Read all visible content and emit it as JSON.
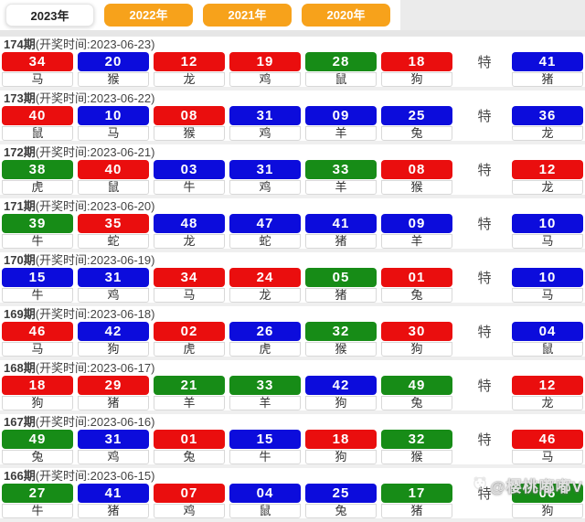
{
  "tabs": [
    {
      "label": "2023年",
      "active": true
    },
    {
      "label": "2022年",
      "active": false
    },
    {
      "label": "2021年",
      "active": false
    },
    {
      "label": "2020年",
      "active": false
    }
  ],
  "special_label": "特",
  "watermark": {
    "text": "@樱桃嘟嘟V",
    "icon": "panda-icon"
  },
  "colors": {
    "red": "#ea0e0e",
    "blue": "#0c0cdc",
    "green": "#178c17",
    "tab_orange": "#f7a21b"
  },
  "draws": [
    {
      "period": "174期",
      "time": "(开奖时间:2023-06-23)",
      "balls": [
        {
          "n": "34",
          "z": "马",
          "c": "red"
        },
        {
          "n": "20",
          "z": "猴",
          "c": "blue"
        },
        {
          "n": "12",
          "z": "龙",
          "c": "red"
        },
        {
          "n": "19",
          "z": "鸡",
          "c": "red"
        },
        {
          "n": "28",
          "z": "鼠",
          "c": "green"
        },
        {
          "n": "18",
          "z": "狗",
          "c": "red"
        }
      ],
      "special": {
        "n": "41",
        "z": "猪",
        "c": "blue"
      }
    },
    {
      "period": "173期",
      "time": "(开奖时间:2023-06-22)",
      "balls": [
        {
          "n": "40",
          "z": "鼠",
          "c": "red"
        },
        {
          "n": "10",
          "z": "马",
          "c": "blue"
        },
        {
          "n": "08",
          "z": "猴",
          "c": "red"
        },
        {
          "n": "31",
          "z": "鸡",
          "c": "blue"
        },
        {
          "n": "09",
          "z": "羊",
          "c": "blue"
        },
        {
          "n": "25",
          "z": "兔",
          "c": "blue"
        }
      ],
      "special": {
        "n": "36",
        "z": "龙",
        "c": "blue"
      }
    },
    {
      "period": "172期",
      "time": "(开奖时间:2023-06-21)",
      "balls": [
        {
          "n": "38",
          "z": "虎",
          "c": "green"
        },
        {
          "n": "40",
          "z": "鼠",
          "c": "red"
        },
        {
          "n": "03",
          "z": "牛",
          "c": "blue"
        },
        {
          "n": "31",
          "z": "鸡",
          "c": "blue"
        },
        {
          "n": "33",
          "z": "羊",
          "c": "green"
        },
        {
          "n": "08",
          "z": "猴",
          "c": "red"
        }
      ],
      "special": {
        "n": "12",
        "z": "龙",
        "c": "red"
      }
    },
    {
      "period": "171期",
      "time": "(开奖时间:2023-06-20)",
      "balls": [
        {
          "n": "39",
          "z": "牛",
          "c": "green"
        },
        {
          "n": "35",
          "z": "蛇",
          "c": "red"
        },
        {
          "n": "48",
          "z": "龙",
          "c": "blue"
        },
        {
          "n": "47",
          "z": "蛇",
          "c": "blue"
        },
        {
          "n": "41",
          "z": "猪",
          "c": "blue"
        },
        {
          "n": "09",
          "z": "羊",
          "c": "blue"
        }
      ],
      "special": {
        "n": "10",
        "z": "马",
        "c": "blue"
      }
    },
    {
      "period": "170期",
      "time": "(开奖时间:2023-06-19)",
      "balls": [
        {
          "n": "15",
          "z": "牛",
          "c": "blue"
        },
        {
          "n": "31",
          "z": "鸡",
          "c": "blue"
        },
        {
          "n": "34",
          "z": "马",
          "c": "red"
        },
        {
          "n": "24",
          "z": "龙",
          "c": "red"
        },
        {
          "n": "05",
          "z": "猪",
          "c": "green"
        },
        {
          "n": "01",
          "z": "兔",
          "c": "red"
        }
      ],
      "special": {
        "n": "10",
        "z": "马",
        "c": "blue"
      }
    },
    {
      "period": "169期",
      "time": "(开奖时间:2023-06-18)",
      "balls": [
        {
          "n": "46",
          "z": "马",
          "c": "red"
        },
        {
          "n": "42",
          "z": "狗",
          "c": "blue"
        },
        {
          "n": "02",
          "z": "虎",
          "c": "red"
        },
        {
          "n": "26",
          "z": "虎",
          "c": "blue"
        },
        {
          "n": "32",
          "z": "猴",
          "c": "green"
        },
        {
          "n": "30",
          "z": "狗",
          "c": "red"
        }
      ],
      "special": {
        "n": "04",
        "z": "鼠",
        "c": "blue"
      }
    },
    {
      "period": "168期",
      "time": "(开奖时间:2023-06-17)",
      "balls": [
        {
          "n": "18",
          "z": "狗",
          "c": "red"
        },
        {
          "n": "29",
          "z": "猪",
          "c": "red"
        },
        {
          "n": "21",
          "z": "羊",
          "c": "green"
        },
        {
          "n": "33",
          "z": "羊",
          "c": "green"
        },
        {
          "n": "42",
          "z": "狗",
          "c": "blue"
        },
        {
          "n": "49",
          "z": "兔",
          "c": "green"
        }
      ],
      "special": {
        "n": "12",
        "z": "龙",
        "c": "red"
      }
    },
    {
      "period": "167期",
      "time": "(开奖时间:2023-06-16)",
      "balls": [
        {
          "n": "49",
          "z": "兔",
          "c": "green"
        },
        {
          "n": "31",
          "z": "鸡",
          "c": "blue"
        },
        {
          "n": "01",
          "z": "兔",
          "c": "red"
        },
        {
          "n": "15",
          "z": "牛",
          "c": "blue"
        },
        {
          "n": "18",
          "z": "狗",
          "c": "red"
        },
        {
          "n": "32",
          "z": "猴",
          "c": "green"
        }
      ],
      "special": {
        "n": "46",
        "z": "马",
        "c": "red"
      }
    },
    {
      "period": "166期",
      "time": "(开奖时间:2023-06-15)",
      "balls": [
        {
          "n": "27",
          "z": "牛",
          "c": "green"
        },
        {
          "n": "41",
          "z": "猪",
          "c": "blue"
        },
        {
          "n": "07",
          "z": "鸡",
          "c": "red"
        },
        {
          "n": "04",
          "z": "鼠",
          "c": "blue"
        },
        {
          "n": "25",
          "z": "兔",
          "c": "blue"
        },
        {
          "n": "17",
          "z": "猪",
          "c": "green"
        }
      ],
      "special": {
        "n": "06",
        "z": "狗",
        "c": "green"
      }
    }
  ]
}
